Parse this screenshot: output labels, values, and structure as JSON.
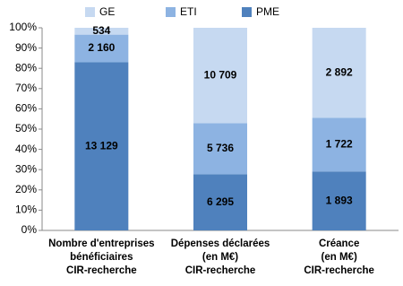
{
  "chart_data": {
    "type": "bar",
    "stacked": "percent",
    "categories": [
      "Nombre d'entreprises\nbénéficiaires\nCIR-recherche",
      "Dépenses déclarées\n(en M€)\nCIR-recherche",
      "Créance\n(en M€)\nCIR-recherche"
    ],
    "series": [
      {
        "name": "PME",
        "color": "#4f81bd",
        "values": [
          13129,
          6295,
          1893
        ],
        "value_labels": [
          "13 129",
          "6 295",
          "1 893"
        ]
      },
      {
        "name": "ETI",
        "color": "#8db3e2",
        "values": [
          2160,
          5736,
          1722
        ],
        "value_labels": [
          "2 160",
          "5 736",
          "1 722"
        ]
      },
      {
        "name": "GE",
        "color": "#c6d9f1",
        "values": [
          534,
          10709,
          2892
        ],
        "value_labels": [
          "534",
          "10 709",
          "2 892"
        ]
      }
    ],
    "ylim": [
      0,
      100
    ],
    "yticks": [
      {
        "value": 0,
        "label": "0%"
      },
      {
        "value": 10,
        "label": "10%"
      },
      {
        "value": 20,
        "label": "20%"
      },
      {
        "value": 30,
        "label": "30%"
      },
      {
        "value": 40,
        "label": "40%"
      },
      {
        "value": 50,
        "label": "50%"
      },
      {
        "value": 60,
        "label": "60%"
      },
      {
        "value": 70,
        "label": "70%"
      },
      {
        "value": 80,
        "label": "80%"
      },
      {
        "value": 90,
        "label": "90%"
      },
      {
        "value": 100,
        "label": "100%"
      }
    ],
    "grid": false,
    "legend": "top"
  }
}
